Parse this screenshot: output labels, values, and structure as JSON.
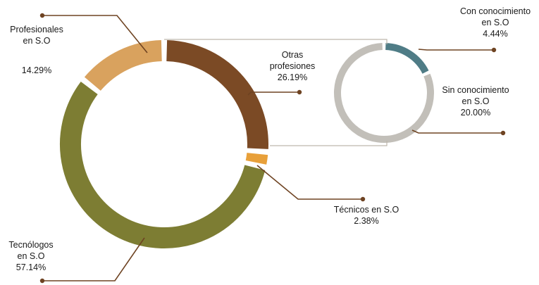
{
  "chart_data": [
    {
      "type": "pie",
      "variant": "donut",
      "title": "",
      "slices": [
        {
          "label_lines": [
            "Otras",
            "profesiones"
          ],
          "value_label": "26.19%",
          "value": 26.19,
          "color": "#7b4a25"
        },
        {
          "label_lines": [
            "Técnicos en S.O"
          ],
          "value_label": "2.38%",
          "value": 2.38,
          "color": "#e8a03a"
        },
        {
          "label_lines": [
            "Tecnólogos",
            "en S.O"
          ],
          "value_label": "57.14%",
          "value": 57.14,
          "color": "#7d7d33"
        },
        {
          "label_lines": [
            "Profesionales",
            "en S.O"
          ],
          "value_label": "14.29%",
          "value": 14.29,
          "color": "#d9a25e"
        }
      ]
    },
    {
      "type": "pie",
      "variant": "donut",
      "title": "",
      "breakdown_of": "Otras profesiones",
      "slices": [
        {
          "label_lines": [
            "Con conocimiento",
            "en S.O"
          ],
          "value_label": "4.44%",
          "value": 4.44,
          "color": "#4f7c86"
        },
        {
          "label_lines": [
            "Sin conocimiento",
            "en S.O"
          ],
          "value_label": "20.00%",
          "value": 20.0,
          "color": "#c2bfb9"
        }
      ]
    }
  ],
  "colors": {
    "leader_line": "#6e4322",
    "connector_line": "#bdb6ac"
  }
}
